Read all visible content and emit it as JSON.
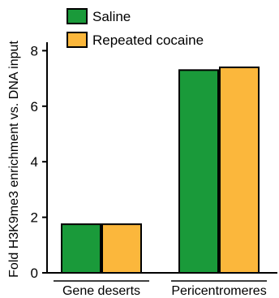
{
  "chart_data": {
    "type": "bar",
    "categories": [
      "Gene deserts",
      "Pericentromeres"
    ],
    "series": [
      {
        "name": "Saline",
        "values": [
          1.75,
          7.3
        ],
        "color": "#1a9a3a"
      },
      {
        "name": "Repeated cocaine",
        "values": [
          1.75,
          7.4
        ],
        "color": "#fbb73c"
      }
    ],
    "ylabel": "Fold H3K9me3 enrichment vs. DNA input",
    "yticks": [
      0,
      2,
      4,
      6,
      8
    ],
    "ylim": [
      0,
      8.5
    ],
    "legend_position": "top-left",
    "grid": false
  }
}
